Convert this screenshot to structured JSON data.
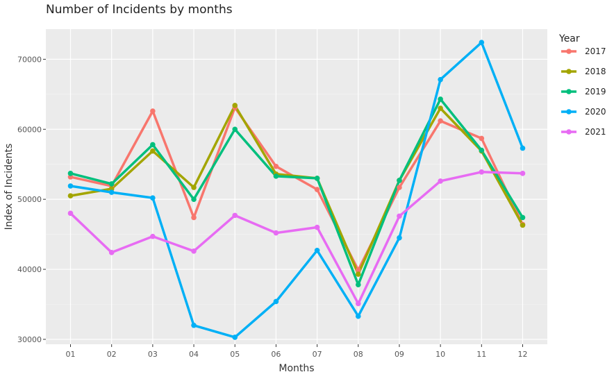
{
  "chart_data": {
    "type": "line",
    "title": "Number of Incidents by months",
    "xlabel": "Months",
    "ylabel": "Index of Incidents",
    "categories": [
      "01",
      "02",
      "03",
      "04",
      "05",
      "06",
      "07",
      "08",
      "09",
      "10",
      "11",
      "12"
    ],
    "ylim": [
      29300,
      74300
    ],
    "yticks": [
      30000,
      40000,
      50000,
      60000,
      70000
    ],
    "ytick_labels": [
      "30000",
      "40000",
      "50000",
      "60000",
      "70000"
    ],
    "grid": true,
    "legend": {
      "title": "Year",
      "position": "right"
    },
    "series": [
      {
        "name": "2017",
        "color": "#F8766D",
        "values": [
          53200,
          51900,
          62600,
          47400,
          63100,
          54700,
          51400,
          39900,
          51700,
          61200,
          58700,
          46400
        ]
      },
      {
        "name": "2018",
        "color": "#A3A500",
        "values": [
          50500,
          51500,
          56900,
          51700,
          63400,
          53600,
          53000,
          39300,
          52700,
          63000,
          56900,
          46300
        ]
      },
      {
        "name": "2019",
        "color": "#00BF7D",
        "values": [
          53700,
          52200,
          57800,
          50000,
          60000,
          53300,
          53000,
          37800,
          52700,
          64300,
          57000,
          47400
        ]
      },
      {
        "name": "2020",
        "color": "#00B0F6",
        "values": [
          51900,
          51000,
          50200,
          32000,
          30300,
          35400,
          42700,
          33300,
          44500,
          67100,
          72400,
          57300
        ]
      },
      {
        "name": "2021",
        "color": "#E76BF3",
        "values": [
          48000,
          42400,
          44700,
          42600,
          47700,
          45200,
          46000,
          35100,
          47600,
          52600,
          53900,
          53700
        ]
      }
    ]
  }
}
